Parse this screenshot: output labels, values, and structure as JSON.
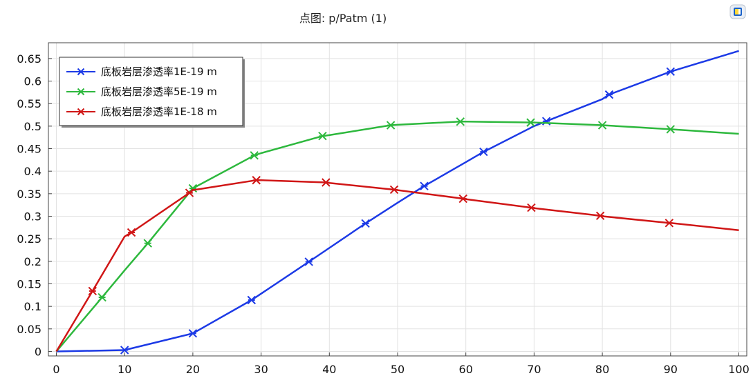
{
  "chart_data": {
    "type": "line",
    "title": "点图: p/Patm (1)",
    "xlabel": "",
    "ylabel": "",
    "xlim": [
      0,
      100
    ],
    "ylim": [
      -0.01,
      0.685
    ],
    "xticks": [
      0,
      10,
      20,
      30,
      40,
      50,
      60,
      70,
      80,
      90,
      100
    ],
    "yticks": [
      0,
      0.05,
      0.1,
      0.15,
      0.2,
      0.25,
      0.3,
      0.35,
      0.4,
      0.45,
      0.5,
      0.55,
      0.6,
      0.65
    ],
    "ytick_labels": [
      "0",
      "0.05",
      "0.1",
      "0.15",
      "0.2",
      "0.25",
      "0.3",
      "0.35",
      "0.4",
      "0.45",
      "0.5",
      "0.55",
      "0.6",
      "0.65"
    ],
    "grid": true,
    "legend_position": "top-left",
    "series": [
      {
        "name": "底板岩层渗透率1E-19 m",
        "color": "#1c3ae6",
        "points": [
          [
            0,
            0.0
          ],
          [
            10,
            0.003
          ],
          [
            20,
            0.04
          ],
          [
            28.6,
            0.114
          ],
          [
            37,
            0.199
          ],
          [
            45.3,
            0.284
          ],
          [
            50,
            0.33
          ],
          [
            53.9,
            0.367
          ],
          [
            60,
            0.42
          ],
          [
            62.6,
            0.443
          ],
          [
            70,
            0.5
          ],
          [
            71.8,
            0.511
          ],
          [
            80,
            0.56
          ],
          [
            81,
            0.57
          ],
          [
            90,
            0.621
          ],
          [
            100,
            0.667
          ]
        ],
        "markers": [
          [
            10,
            0.003
          ],
          [
            20,
            0.04
          ],
          [
            28.6,
            0.114
          ],
          [
            37,
            0.199
          ],
          [
            45.3,
            0.284
          ],
          [
            53.9,
            0.367
          ],
          [
            62.6,
            0.443
          ],
          [
            71.8,
            0.511
          ],
          [
            81,
            0.57
          ],
          [
            90,
            0.621
          ]
        ]
      },
      {
        "name": "底板岩层渗透率5E-19 m",
        "color": "#2db83d",
        "points": [
          [
            0,
            0.0
          ],
          [
            6.7,
            0.12
          ],
          [
            10,
            0.18
          ],
          [
            13.4,
            0.24
          ],
          [
            20,
            0.362
          ],
          [
            20,
            0.362
          ],
          [
            29,
            0.435
          ],
          [
            30,
            0.44
          ],
          [
            39,
            0.478
          ],
          [
            40,
            0.48
          ],
          [
            49,
            0.502
          ],
          [
            50,
            0.503
          ],
          [
            59.2,
            0.51
          ],
          [
            60,
            0.51
          ],
          [
            69.5,
            0.508
          ],
          [
            70,
            0.508
          ],
          [
            80,
            0.502
          ],
          [
            90,
            0.493
          ],
          [
            100,
            0.483
          ]
        ],
        "markers": [
          [
            6.7,
            0.12
          ],
          [
            13.4,
            0.24
          ],
          [
            20,
            0.362
          ],
          [
            29,
            0.435
          ],
          [
            39,
            0.478
          ],
          [
            49,
            0.502
          ],
          [
            59.2,
            0.51
          ],
          [
            69.5,
            0.508
          ],
          [
            80,
            0.502
          ],
          [
            90,
            0.493
          ]
        ]
      },
      {
        "name": "底板岩层渗透率1E-18 m",
        "color": "#d01616",
        "points": [
          [
            0,
            0.0
          ],
          [
            5.3,
            0.134
          ],
          [
            10,
            0.255
          ],
          [
            11,
            0.264
          ],
          [
            19.5,
            0.352
          ],
          [
            20,
            0.358
          ],
          [
            29.3,
            0.38
          ],
          [
            30,
            0.38
          ],
          [
            39.5,
            0.375
          ],
          [
            40,
            0.374
          ],
          [
            49.5,
            0.359
          ],
          [
            50,
            0.358
          ],
          [
            59.6,
            0.339
          ],
          [
            60,
            0.338
          ],
          [
            69.6,
            0.319
          ],
          [
            70,
            0.318
          ],
          [
            79.7,
            0.301
          ],
          [
            80,
            0.3
          ],
          [
            89.8,
            0.285
          ],
          [
            90,
            0.285
          ],
          [
            100,
            0.269
          ]
        ],
        "markers": [
          [
            5.3,
            0.134
          ],
          [
            11,
            0.264
          ],
          [
            19.5,
            0.352
          ],
          [
            29.3,
            0.38
          ],
          [
            39.5,
            0.375
          ],
          [
            49.5,
            0.359
          ],
          [
            59.6,
            0.339
          ],
          [
            69.6,
            0.319
          ],
          [
            79.7,
            0.301
          ],
          [
            89.8,
            0.285
          ]
        ]
      }
    ]
  },
  "ui": {
    "toolbar_icon": "plot-window-icon"
  }
}
